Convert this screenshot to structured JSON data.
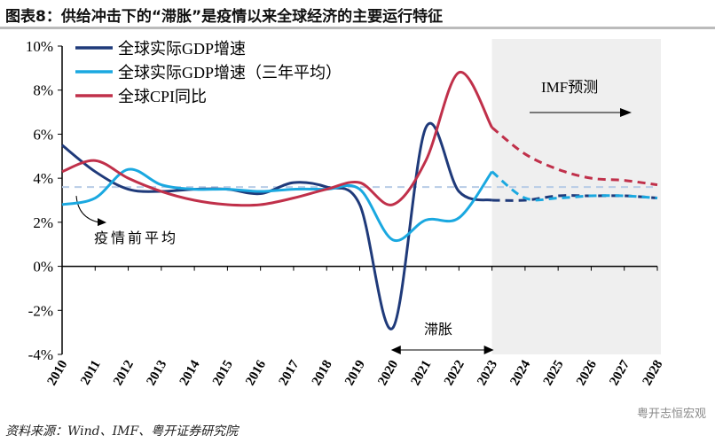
{
  "title": "图表8：供给冲击下的“滞胀”是疫情以来全球经济的主要运行特征",
  "source": "资料来源：Wind、IMF、粤开证券研究院",
  "watermark": "粤开志恒宏观",
  "chart_data": {
    "type": "line",
    "x": [
      2010,
      2011,
      2012,
      2013,
      2014,
      2015,
      2016,
      2017,
      2018,
      2019,
      2020,
      2021,
      2022,
      2023,
      2024,
      2025,
      2026,
      2027,
      2028
    ],
    "ylim": [
      -4,
      10
    ],
    "yticks": [
      "-4%",
      "-2%",
      "0%",
      "2%",
      "4%",
      "6%",
      "8%",
      "10%"
    ],
    "forecast_start": 2023,
    "series": [
      {
        "name": "全球实际GDP增速",
        "color": "#1f3a7a",
        "values": [
          5.5,
          4.3,
          3.5,
          3.4,
          3.5,
          3.5,
          3.3,
          3.8,
          3.6,
          2.8,
          -2.8,
          6.3,
          3.4,
          3.0,
          3.0,
          3.2,
          3.2,
          3.2,
          3.1
        ]
      },
      {
        "name": "全球实际GDP增速（三年平均）",
        "color": "#1aa8e0",
        "values": [
          2.8,
          3.1,
          4.4,
          3.7,
          3.5,
          3.5,
          3.4,
          3.5,
          3.5,
          3.5,
          1.2,
          2.1,
          2.2,
          4.3,
          3.1,
          3.1,
          3.2,
          3.2,
          3.1
        ]
      },
      {
        "name": "全球CPI同比",
        "color": "#c0304a",
        "values": [
          4.3,
          4.8,
          4.0,
          3.4,
          3.0,
          2.8,
          2.8,
          3.1,
          3.5,
          3.8,
          2.8,
          4.8,
          8.8,
          6.3,
          5.1,
          4.4,
          4.0,
          3.9,
          3.7
        ]
      }
    ],
    "reference_line": {
      "label": "疫情前平均",
      "value": 3.6,
      "color": "#b8cce6"
    },
    "annotations": {
      "forecast": "IMF预测",
      "stagflation": "滞胀"
    }
  }
}
